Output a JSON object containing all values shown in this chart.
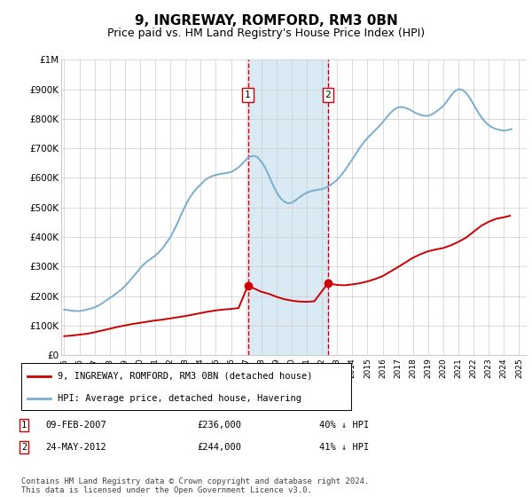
{
  "title": "9, INGREWAY, ROMFORD, RM3 0BN",
  "subtitle": "Price paid vs. HM Land Registry's House Price Index (HPI)",
  "title_fontsize": 11,
  "subtitle_fontsize": 9,
  "ylim": [
    0,
    1000000
  ],
  "yticks": [
    0,
    100000,
    200000,
    300000,
    400000,
    500000,
    600000,
    700000,
    800000,
    900000,
    1000000
  ],
  "ytick_labels": [
    "£0",
    "£100K",
    "£200K",
    "£300K",
    "£400K",
    "£500K",
    "£600K",
    "£700K",
    "£800K",
    "£900K",
    "£1M"
  ],
  "xlim_start": 1994.8,
  "xlim_end": 2025.5,
  "xtick_years": [
    1995,
    1996,
    1997,
    1998,
    1999,
    2000,
    2001,
    2002,
    2003,
    2004,
    2005,
    2006,
    2007,
    2008,
    2009,
    2010,
    2011,
    2012,
    2013,
    2014,
    2015,
    2016,
    2017,
    2018,
    2019,
    2020,
    2021,
    2022,
    2023,
    2024,
    2025
  ],
  "point1_x": 2007.11,
  "point1_y": 236000,
  "point1_label": "1",
  "point1_date": "09-FEB-2007",
  "point1_price": "£236,000",
  "point1_hpi": "40% ↓ HPI",
  "point2_x": 2012.39,
  "point2_y": 244000,
  "point2_label": "2",
  "point2_date": "24-MAY-2012",
  "point2_price": "£244,000",
  "point2_hpi": "41% ↓ HPI",
  "legend1_label": "9, INGREWAY, ROMFORD, RM3 0BN (detached house)",
  "legend2_label": "HPI: Average price, detached house, Havering",
  "footer": "Contains HM Land Registry data © Crown copyright and database right 2024.\nThis data is licensed under the Open Government Licence v3.0.",
  "line_color_red": "#cc0000",
  "line_color_blue": "#7aadcf",
  "shade_color": "#daeaf5",
  "grid_color": "#cccccc",
  "background_color": "#ffffff",
  "hpi_x": [
    1995.0,
    1995.25,
    1995.5,
    1995.75,
    1996.0,
    1996.25,
    1996.5,
    1996.75,
    1997.0,
    1997.25,
    1997.5,
    1997.75,
    1998.0,
    1998.25,
    1998.5,
    1998.75,
    1999.0,
    1999.25,
    1999.5,
    1999.75,
    2000.0,
    2000.25,
    2000.5,
    2000.75,
    2001.0,
    2001.25,
    2001.5,
    2001.75,
    2002.0,
    2002.25,
    2002.5,
    2002.75,
    2003.0,
    2003.25,
    2003.5,
    2003.75,
    2004.0,
    2004.25,
    2004.5,
    2004.75,
    2005.0,
    2005.25,
    2005.5,
    2005.75,
    2006.0,
    2006.25,
    2006.5,
    2006.75,
    2007.0,
    2007.25,
    2007.5,
    2007.75,
    2008.0,
    2008.25,
    2008.5,
    2008.75,
    2009.0,
    2009.25,
    2009.5,
    2009.75,
    2010.0,
    2010.25,
    2010.5,
    2010.75,
    2011.0,
    2011.25,
    2011.5,
    2011.75,
    2012.0,
    2012.25,
    2012.5,
    2012.75,
    2013.0,
    2013.25,
    2013.5,
    2013.75,
    2014.0,
    2014.25,
    2014.5,
    2014.75,
    2015.0,
    2015.25,
    2015.5,
    2015.75,
    2016.0,
    2016.25,
    2016.5,
    2016.75,
    2017.0,
    2017.25,
    2017.5,
    2017.75,
    2018.0,
    2018.25,
    2018.5,
    2018.75,
    2019.0,
    2019.25,
    2019.5,
    2019.75,
    2020.0,
    2020.25,
    2020.5,
    2020.75,
    2021.0,
    2021.25,
    2021.5,
    2021.75,
    2022.0,
    2022.25,
    2022.5,
    2022.75,
    2023.0,
    2023.25,
    2023.5,
    2023.75,
    2024.0,
    2024.25,
    2024.5
  ],
  "hpi_y": [
    155000,
    153000,
    151000,
    150000,
    150000,
    152000,
    155000,
    158000,
    162000,
    168000,
    176000,
    185000,
    194000,
    202000,
    212000,
    222000,
    234000,
    248000,
    263000,
    278000,
    294000,
    308000,
    319000,
    328000,
    337000,
    349000,
    363000,
    381000,
    400000,
    424000,
    451000,
    480000,
    507000,
    531000,
    550000,
    565000,
    578000,
    591000,
    600000,
    606000,
    610000,
    613000,
    615000,
    617000,
    620000,
    627000,
    636000,
    648000,
    662000,
    672000,
    675000,
    670000,
    655000,
    635000,
    608000,
    578000,
    552000,
    533000,
    520000,
    514000,
    516000,
    524000,
    534000,
    543000,
    550000,
    555000,
    558000,
    560000,
    562000,
    567000,
    574000,
    583000,
    594000,
    608000,
    625000,
    644000,
    663000,
    683000,
    703000,
    720000,
    735000,
    748000,
    761000,
    774000,
    788000,
    804000,
    819000,
    831000,
    838000,
    840000,
    837000,
    832000,
    825000,
    818000,
    813000,
    810000,
    810000,
    815000,
    823000,
    833000,
    843000,
    860000,
    878000,
    893000,
    900000,
    898000,
    888000,
    870000,
    848000,
    826000,
    806000,
    790000,
    778000,
    770000,
    765000,
    762000,
    760000,
    762000,
    765000
  ],
  "prop_x": [
    1995.0,
    1995.5,
    1996.0,
    1996.5,
    1997.0,
    1997.5,
    1998.0,
    1998.5,
    1999.0,
    1999.5,
    2000.0,
    2000.5,
    2001.0,
    2001.5,
    2002.0,
    2002.5,
    2003.0,
    2003.5,
    2004.0,
    2004.5,
    2005.0,
    2005.5,
    2006.0,
    2006.5,
    2007.11,
    2008.0,
    2008.5,
    2009.0,
    2009.5,
    2010.0,
    2010.5,
    2011.0,
    2011.5,
    2012.39,
    2013.0,
    2013.5,
    2014.0,
    2014.5,
    2015.0,
    2015.5,
    2016.0,
    2016.5,
    2017.0,
    2017.5,
    2018.0,
    2018.5,
    2019.0,
    2019.5,
    2020.0,
    2020.5,
    2021.0,
    2021.5,
    2022.0,
    2022.5,
    2023.0,
    2023.5,
    2024.0,
    2024.4
  ],
  "prop_y": [
    65000,
    67000,
    70000,
    73000,
    78000,
    84000,
    90000,
    96000,
    101000,
    106000,
    110000,
    114000,
    118000,
    121000,
    125000,
    129000,
    133000,
    138000,
    143000,
    148000,
    152000,
    155000,
    157000,
    160000,
    236000,
    215000,
    208000,
    198000,
    190000,
    185000,
    182000,
    181000,
    183000,
    244000,
    238000,
    237000,
    240000,
    244000,
    250000,
    258000,
    268000,
    283000,
    298000,
    314000,
    330000,
    342000,
    352000,
    358000,
    363000,
    372000,
    384000,
    398000,
    418000,
    438000,
    452000,
    462000,
    467000,
    472000
  ]
}
